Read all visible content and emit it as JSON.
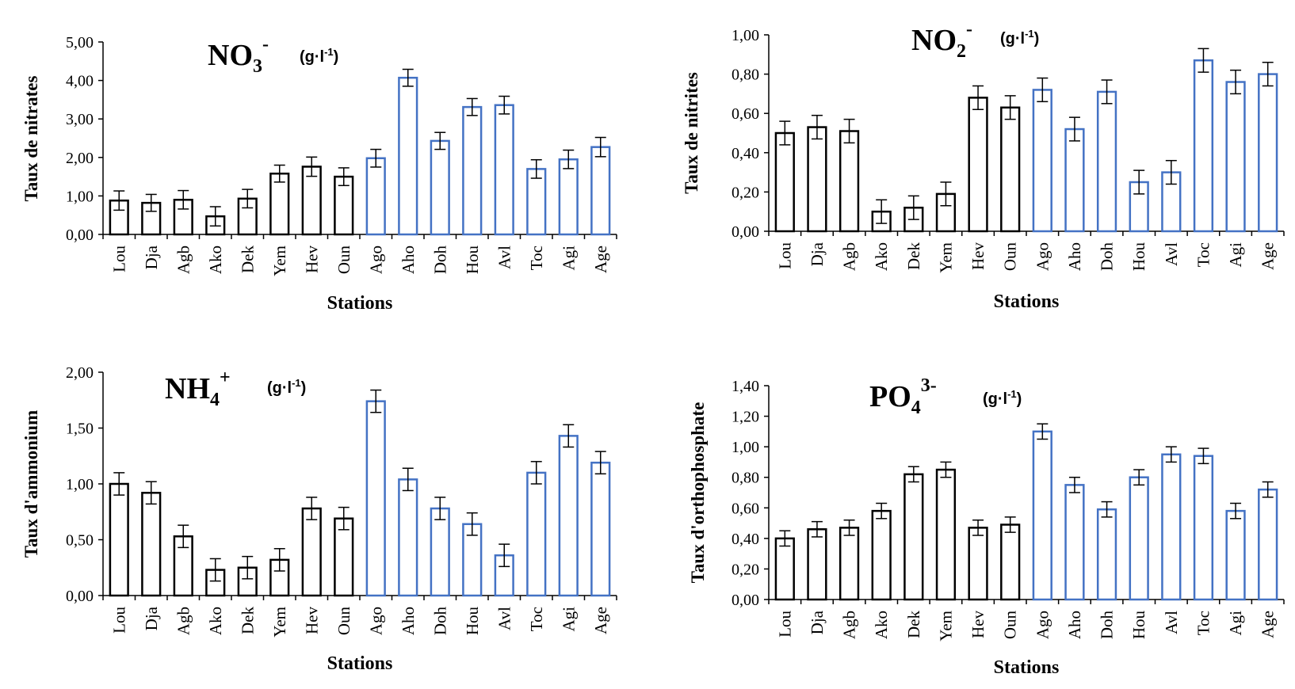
{
  "chart_data": [
    {
      "type": "bar",
      "title_main": "NO",
      "title_sub": "3",
      "title_sup": "-",
      "unit_label": "(g·l",
      "unit_sup": "-1",
      "unit_close": ")",
      "xlabel": "Stations",
      "ylabel": "Taux de nitrates",
      "ylim": [
        0,
        5
      ],
      "yticks": [
        "0,00",
        "1,00",
        "2,00",
        "3,00",
        "4,00",
        "5,00"
      ],
      "categories": [
        "Lou",
        "Dja",
        "Agb",
        "Ako",
        "Dek",
        "Yem",
        "Hev",
        "Oun",
        "Ago",
        "Aho",
        "Doh",
        "Hou",
        "Avl",
        "Toc",
        "Agi",
        "Age"
      ],
      "values": [
        0.88,
        0.82,
        0.9,
        0.47,
        0.93,
        1.58,
        1.76,
        1.5,
        1.98,
        4.07,
        2.43,
        3.31,
        3.36,
        1.7,
        1.95,
        2.27
      ],
      "errors": [
        0.25,
        0.22,
        0.24,
        0.25,
        0.24,
        0.22,
        0.25,
        0.23,
        0.23,
        0.22,
        0.22,
        0.22,
        0.23,
        0.24,
        0.24,
        0.25
      ],
      "colors": [
        "#000000",
        "#000000",
        "#000000",
        "#000000",
        "#000000",
        "#000000",
        "#000000",
        "#000000",
        "#4472C4",
        "#4472C4",
        "#4472C4",
        "#4472C4",
        "#4472C4",
        "#4472C4",
        "#4472C4",
        "#4472C4"
      ]
    },
    {
      "type": "bar",
      "title_main": "NO",
      "title_sub": "2",
      "title_sup": "-",
      "unit_label": "(g·l",
      "unit_sup": "-1",
      "unit_close": ")",
      "xlabel": "Stations",
      "ylabel": "Taux de nitrites",
      "ylim": [
        0,
        1
      ],
      "yticks": [
        "0,00",
        "0,20",
        "0,40",
        "0,60",
        "0,80",
        "1,00"
      ],
      "categories": [
        "Lou",
        "Dja",
        "Agb",
        "Ako",
        "Dek",
        "Yem",
        "Hev",
        "Oun",
        "Ago",
        "Aho",
        "Doh",
        "Hou",
        "Avl",
        "Toc",
        "Agi",
        "Age"
      ],
      "values": [
        0.5,
        0.53,
        0.51,
        0.1,
        0.12,
        0.19,
        0.68,
        0.63,
        0.72,
        0.52,
        0.71,
        0.25,
        0.3,
        0.87,
        0.76,
        0.8
      ],
      "errors": [
        0.06,
        0.06,
        0.06,
        0.06,
        0.06,
        0.06,
        0.06,
        0.06,
        0.06,
        0.06,
        0.06,
        0.06,
        0.06,
        0.06,
        0.06,
        0.06
      ],
      "colors": [
        "#000000",
        "#000000",
        "#000000",
        "#000000",
        "#000000",
        "#000000",
        "#000000",
        "#000000",
        "#4472C4",
        "#4472C4",
        "#4472C4",
        "#4472C4",
        "#4472C4",
        "#4472C4",
        "#4472C4",
        "#4472C4"
      ]
    },
    {
      "type": "bar",
      "title_main": "NH",
      "title_sub": "4",
      "title_sup": "+",
      "unit_label": "(g·l",
      "unit_sup": "-1",
      "unit_close": ")",
      "xlabel": "Stations",
      "ylabel": "Taux d'ammonium",
      "ylim": [
        0,
        2
      ],
      "yticks": [
        "0,00",
        "0,50",
        "1,00",
        "1,50",
        "2,00"
      ],
      "categories": [
        "Lou",
        "Dja",
        "Agb",
        "Ako",
        "Dek",
        "Yem",
        "Hev",
        "Oun",
        "Ago",
        "Aho",
        "Doh",
        "Hou",
        "Avl",
        "Toc",
        "Agi",
        "Age"
      ],
      "values": [
        1.0,
        0.92,
        0.53,
        0.23,
        0.25,
        0.32,
        0.78,
        0.69,
        1.74,
        1.04,
        0.78,
        0.64,
        0.36,
        1.1,
        1.43,
        1.19
      ],
      "errors": [
        0.1,
        0.1,
        0.1,
        0.1,
        0.1,
        0.1,
        0.1,
        0.1,
        0.1,
        0.1,
        0.1,
        0.1,
        0.1,
        0.1,
        0.1,
        0.1
      ],
      "colors": [
        "#000000",
        "#000000",
        "#000000",
        "#000000",
        "#000000",
        "#000000",
        "#000000",
        "#000000",
        "#4472C4",
        "#4472C4",
        "#4472C4",
        "#4472C4",
        "#4472C4",
        "#4472C4",
        "#4472C4",
        "#4472C4"
      ]
    },
    {
      "type": "bar",
      "title_main": "PO",
      "title_sub": "4",
      "title_sup": "3-",
      "unit_label": "(g·l",
      "unit_sup": "-1",
      "unit_close": ")",
      "xlabel": "Stations",
      "ylabel": "Taux d'orthophosphate",
      "ylim": [
        0,
        1.4
      ],
      "yticks": [
        "0,00",
        "0,20",
        "0,40",
        "0,60",
        "0,80",
        "1,00",
        "1,20",
        "1,40"
      ],
      "categories": [
        "Lou",
        "Dja",
        "Agb",
        "Ako",
        "Dek",
        "Yem",
        "Hev",
        "Oun",
        "Ago",
        "Aho",
        "Doh",
        "Hou",
        "Avl",
        "Toc",
        "Agi",
        "Age"
      ],
      "values": [
        0.4,
        0.46,
        0.47,
        0.58,
        0.82,
        0.85,
        0.47,
        0.49,
        1.1,
        0.75,
        0.59,
        0.8,
        0.95,
        0.94,
        0.58,
        0.72
      ],
      "errors": [
        0.05,
        0.05,
        0.05,
        0.05,
        0.05,
        0.05,
        0.05,
        0.05,
        0.05,
        0.05,
        0.05,
        0.05,
        0.05,
        0.05,
        0.05,
        0.05
      ],
      "colors": [
        "#000000",
        "#000000",
        "#000000",
        "#000000",
        "#000000",
        "#000000",
        "#000000",
        "#000000",
        "#4472C4",
        "#4472C4",
        "#4472C4",
        "#4472C4",
        "#4472C4",
        "#4472C4",
        "#4472C4",
        "#4472C4"
      ]
    }
  ]
}
